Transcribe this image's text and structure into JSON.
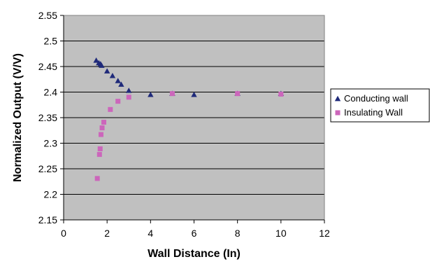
{
  "chart_data": {
    "type": "scatter",
    "title": "",
    "xlabel": "Wall Distance (In)",
    "ylabel": "Normalized Output (V/V)",
    "xlim": [
      0,
      12
    ],
    "ylim": [
      2.15,
      2.55
    ],
    "x_ticks": [
      "0",
      "2",
      "4",
      "6",
      "8",
      "10",
      "12"
    ],
    "y_ticks": [
      "2.15",
      "2.2",
      "2.25",
      "2.3",
      "2.35",
      "2.4",
      "2.45",
      "2.5",
      "2.55"
    ],
    "grid": "horizontal",
    "plot_background": "#c0c0c0",
    "legend_position": "right",
    "series": [
      {
        "name": "Conducting wall",
        "marker": "triangle",
        "color": "#1f2a7a",
        "points": [
          [
            1.5,
            2.462
          ],
          [
            1.62,
            2.457
          ],
          [
            1.7,
            2.455
          ],
          [
            1.75,
            2.452
          ],
          [
            2.0,
            2.441
          ],
          [
            2.25,
            2.432
          ],
          [
            2.5,
            2.422
          ],
          [
            2.65,
            2.415
          ],
          [
            3.0,
            2.403
          ],
          [
            4.0,
            2.395
          ],
          [
            5.0,
            2.397
          ],
          [
            6.0,
            2.395
          ],
          [
            8.0,
            2.397
          ],
          [
            10.0,
            2.397
          ]
        ]
      },
      {
        "name": "Insulating Wall",
        "marker": "square",
        "color": "#cc66bb",
        "points": [
          [
            1.55,
            2.231
          ],
          [
            1.65,
            2.278
          ],
          [
            1.68,
            2.289
          ],
          [
            1.72,
            2.317
          ],
          [
            1.77,
            2.33
          ],
          [
            1.85,
            2.341
          ],
          [
            2.15,
            2.366
          ],
          [
            2.5,
            2.382
          ],
          [
            3.0,
            2.39
          ],
          [
            5.0,
            2.397
          ],
          [
            8.0,
            2.397
          ],
          [
            10.0,
            2.396
          ]
        ]
      }
    ]
  }
}
